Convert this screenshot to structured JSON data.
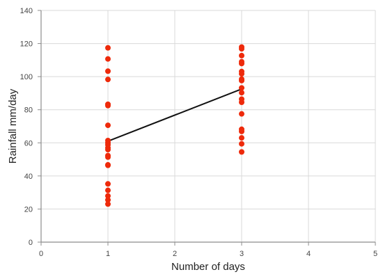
{
  "chart_data": {
    "type": "scatter",
    "title": "",
    "xlabel": "Number of days",
    "ylabel": "Rainfall mm/day",
    "xlim": [
      0,
      5
    ],
    "ylim": [
      0,
      140
    ],
    "xticks": [
      0,
      1,
      2,
      3,
      4,
      5
    ],
    "yticks": [
      0,
      20,
      40,
      60,
      80,
      100,
      120,
      140
    ],
    "grid": true,
    "legend": false,
    "colors": {
      "points": "#ee2a0b",
      "line": "#111111",
      "grid": "#d9d9d9",
      "axis": "#8c8c8c"
    },
    "series": [
      {
        "type": "scatter",
        "points": [
          {
            "x": 1,
            "y": 117.4
          },
          {
            "x": 1,
            "y": 110.7
          },
          {
            "x": 1,
            "y": 103.3
          },
          {
            "x": 1,
            "y": 98.3
          },
          {
            "x": 1,
            "y": 83.3
          },
          {
            "x": 1,
            "y": 82.5
          },
          {
            "x": 1,
            "y": 70.6
          },
          {
            "x": 1,
            "y": 61.4
          },
          {
            "x": 1,
            "y": 60.0
          },
          {
            "x": 1,
            "y": 58.8
          },
          {
            "x": 1,
            "y": 57.0
          },
          {
            "x": 1,
            "y": 55.9
          },
          {
            "x": 1,
            "y": 52.3
          },
          {
            "x": 1,
            "y": 51.4
          },
          {
            "x": 1,
            "y": 46.7
          },
          {
            "x": 1,
            "y": 46.4
          },
          {
            "x": 1,
            "y": 35.2
          },
          {
            "x": 1,
            "y": 31.3
          },
          {
            "x": 1,
            "y": 27.9
          },
          {
            "x": 1,
            "y": 25.5
          },
          {
            "x": 1,
            "y": 23.0
          },
          {
            "x": 3,
            "y": 117.9
          },
          {
            "x": 3,
            "y": 116.8
          },
          {
            "x": 3,
            "y": 112.7
          },
          {
            "x": 3,
            "y": 109.0
          },
          {
            "x": 3,
            "y": 107.9
          },
          {
            "x": 3,
            "y": 103.1
          },
          {
            "x": 3,
            "y": 101.7
          },
          {
            "x": 3,
            "y": 98.5
          },
          {
            "x": 3,
            "y": 97.6
          },
          {
            "x": 3,
            "y": 93.2
          },
          {
            "x": 3,
            "y": 90.3
          },
          {
            "x": 3,
            "y": 86.4
          },
          {
            "x": 3,
            "y": 84.5
          },
          {
            "x": 3,
            "y": 77.5
          },
          {
            "x": 3,
            "y": 68.2
          },
          {
            "x": 3,
            "y": 66.9
          },
          {
            "x": 3,
            "y": 63.0
          },
          {
            "x": 3,
            "y": 59.4
          },
          {
            "x": 3,
            "y": 54.5
          }
        ]
      },
      {
        "type": "line",
        "points": [
          {
            "x": 1,
            "y": 61.0
          },
          {
            "x": 3,
            "y": 92.5
          }
        ]
      }
    ]
  }
}
